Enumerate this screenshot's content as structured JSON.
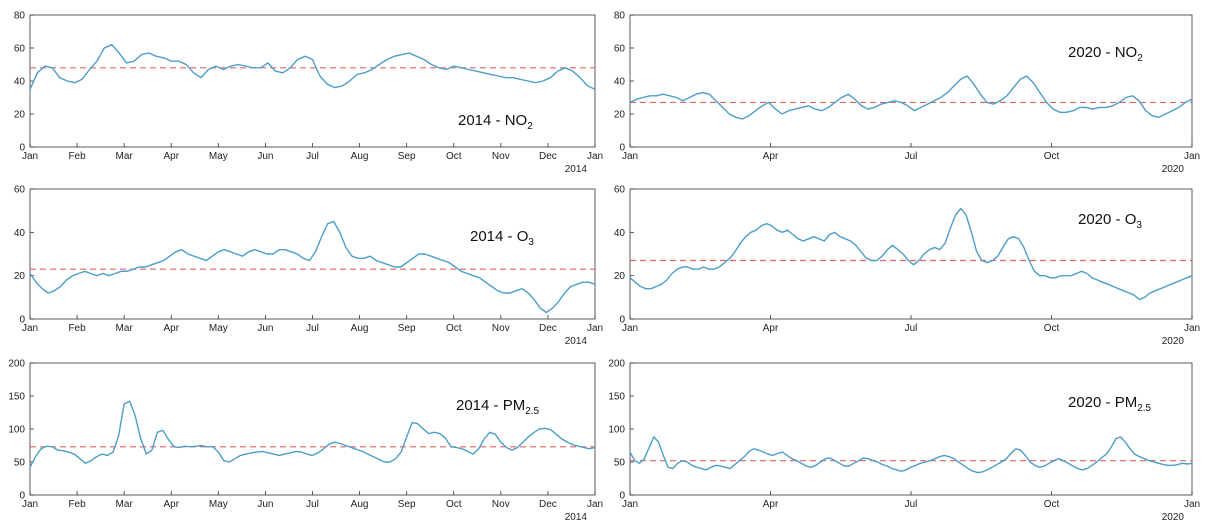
{
  "colors": {
    "series": "#4d9ec9",
    "mean_line": "#e06666",
    "axis": "#333333",
    "background": "#ffffff"
  },
  "chart_data": [
    {
      "type": "line",
      "title_main": "2014 - NO",
      "title_sub": "2",
      "x_tick_labels": [
        "Jan",
        "Feb",
        "Mar",
        "Apr",
        "May",
        "Jun",
        "Jul",
        "Aug",
        "Sep",
        "Oct",
        "Nov",
        "Dec",
        "Jan"
      ],
      "year_label": "2014",
      "ylim": [
        0,
        80
      ],
      "y_ticks": [
        0,
        20,
        40,
        60,
        80
      ],
      "mean": 48,
      "series": [
        {
          "values": [
            35,
            45,
            49,
            48,
            42,
            40,
            39,
            41,
            47,
            52,
            60,
            62,
            57,
            51,
            52,
            56,
            57,
            55,
            54,
            52,
            52,
            50,
            45,
            42,
            47,
            49,
            47,
            49,
            50,
            49,
            48,
            48,
            51,
            46,
            45,
            48,
            53,
            55,
            53,
            43,
            38,
            36,
            37,
            40,
            44,
            45,
            47,
            50,
            53,
            55,
            56,
            57,
            55,
            53,
            50,
            48,
            47,
            49,
            48,
            47,
            46,
            45,
            44,
            43,
            42,
            42,
            41,
            40,
            39,
            40,
            42,
            46,
            48,
            46,
            42,
            37,
            35
          ]
        }
      ]
    },
    {
      "type": "line",
      "title_main": "2020 - NO",
      "title_sub": "2",
      "x_tick_labels": [
        "Jan",
        "Apr",
        "Jul",
        "Oct",
        "Jan"
      ],
      "year_label": "2020",
      "ylim": [
        0,
        80
      ],
      "y_ticks": [
        0,
        20,
        40,
        60,
        80
      ],
      "mean": 27,
      "series": [
        {
          "values": [
            27,
            29,
            30,
            31,
            31,
            32,
            31,
            30,
            28,
            30,
            32,
            33,
            32,
            28,
            24,
            20,
            18,
            17,
            19,
            22,
            25,
            27,
            23,
            20,
            22,
            23,
            24,
            25,
            23,
            22,
            24,
            27,
            30,
            32,
            29,
            25,
            23,
            24,
            26,
            27,
            28,
            27,
            25,
            22,
            24,
            26,
            28,
            30,
            33,
            37,
            41,
            43,
            38,
            32,
            27,
            26,
            28,
            31,
            36,
            41,
            43,
            39,
            33,
            27,
            23,
            21,
            21,
            22,
            24,
            24,
            23,
            24,
            24,
            25,
            27,
            30,
            31,
            28,
            22,
            19,
            18,
            20,
            22,
            24,
            27,
            29
          ]
        }
      ]
    },
    {
      "type": "line",
      "title_main": "2014 - O",
      "title_sub": "3",
      "x_tick_labels": [
        "Jan",
        "Feb",
        "Mar",
        "Apr",
        "May",
        "Jun",
        "Jul",
        "Aug",
        "Sep",
        "Oct",
        "Nov",
        "Dec",
        "Jan"
      ],
      "year_label": "2014",
      "ylim": [
        0,
        60
      ],
      "y_ticks": [
        0,
        20,
        40,
        60
      ],
      "mean": 23,
      "series": [
        {
          "values": [
            21,
            17,
            14,
            12,
            13,
            15,
            18,
            20,
            21,
            22,
            21,
            20,
            21,
            20,
            21,
            22,
            22,
            23,
            24,
            24,
            25,
            26,
            27,
            29,
            31,
            32,
            30,
            29,
            28,
            27,
            29,
            31,
            32,
            31,
            30,
            29,
            31,
            32,
            31,
            30,
            30,
            32,
            32,
            31,
            30,
            28,
            27,
            31,
            38,
            44,
            45,
            40,
            33,
            29,
            28,
            28,
            29,
            27,
            26,
            25,
            24,
            24,
            26,
            28,
            30,
            30,
            29,
            28,
            27,
            26,
            24,
            22,
            21,
            20,
            19,
            17,
            15,
            13,
            12,
            12,
            13,
            14,
            12,
            9,
            5,
            3,
            5,
            8,
            12,
            15,
            16,
            17,
            17,
            16
          ]
        }
      ]
    },
    {
      "type": "line",
      "title_main": "2020 - O",
      "title_sub": "3",
      "x_tick_labels": [
        "Jan",
        "Apr",
        "Jul",
        "Oct",
        "Jan"
      ],
      "year_label": "2020",
      "ylim": [
        0,
        60
      ],
      "y_ticks": [
        0,
        20,
        40,
        60
      ],
      "mean": 27,
      "series": [
        {
          "values": [
            19,
            17,
            15,
            14,
            14,
            15,
            16,
            18,
            21,
            23,
            24,
            24,
            23,
            23,
            24,
            23,
            23,
            24,
            26,
            28,
            31,
            35,
            38,
            40,
            41,
            43,
            44,
            43,
            41,
            40,
            41,
            39,
            37,
            36,
            37,
            38,
            37,
            36,
            39,
            40,
            38,
            37,
            36,
            34,
            31,
            28,
            27,
            27,
            29,
            32,
            34,
            32,
            30,
            27,
            25,
            27,
            30,
            32,
            33,
            32,
            35,
            42,
            48,
            51,
            48,
            40,
            31,
            27,
            26,
            27,
            29,
            33,
            37,
            38,
            37,
            33,
            27,
            22,
            20,
            20,
            19,
            19,
            20,
            20,
            20,
            21,
            22,
            21,
            19,
            18,
            17,
            16,
            15,
            14,
            13,
            12,
            11,
            9,
            10,
            12,
            13,
            14,
            15,
            16,
            17,
            18,
            19,
            20
          ]
        }
      ]
    },
    {
      "type": "line",
      "title_main": "2014 - PM",
      "title_sub": "2.5",
      "x_tick_labels": [
        "Jan",
        "Feb",
        "Mar",
        "Apr",
        "May",
        "Jun",
        "Jul",
        "Aug",
        "Sep",
        "Oct",
        "Nov",
        "Dec",
        "Jan"
      ],
      "year_label": "2014",
      "ylim": [
        0,
        200
      ],
      "y_ticks": [
        0,
        50,
        100,
        150,
        200
      ],
      "mean": 73,
      "series": [
        {
          "values": [
            42,
            58,
            70,
            74,
            73,
            68,
            67,
            65,
            62,
            55,
            48,
            52,
            58,
            62,
            60,
            65,
            90,
            138,
            142,
            120,
            85,
            62,
            68,
            95,
            98,
            84,
            73,
            72,
            74,
            73,
            74,
            75,
            73,
            73,
            65,
            52,
            50,
            55,
            60,
            62,
            64,
            65,
            66,
            64,
            62,
            60,
            62,
            64,
            66,
            65,
            62,
            60,
            64,
            70,
            77,
            80,
            78,
            75,
            72,
            69,
            66,
            62,
            58,
            54,
            50,
            50,
            55,
            65,
            88,
            110,
            108,
            100,
            93,
            95,
            93,
            86,
            73,
            72,
            70,
            66,
            62,
            70,
            85,
            95,
            92,
            80,
            72,
            68,
            72,
            80,
            88,
            95,
            100,
            101,
            99,
            92,
            85,
            80,
            76,
            74,
            72,
            70,
            72
          ]
        }
      ]
    },
    {
      "type": "line",
      "title_main": "2020 - PM",
      "title_sub": "2.5",
      "x_tick_labels": [
        "Jan",
        "Apr",
        "Jul",
        "Oct",
        "Jan"
      ],
      "year_label": "2020",
      "ylim": [
        0,
        200
      ],
      "y_ticks": [
        0,
        50,
        100,
        150,
        200
      ],
      "mean": 52,
      "series": [
        {
          "values": [
            65,
            52,
            48,
            55,
            72,
            88,
            80,
            60,
            42,
            40,
            48,
            52,
            50,
            45,
            42,
            40,
            38,
            42,
            45,
            44,
            42,
            40,
            46,
            52,
            58,
            66,
            70,
            68,
            65,
            62,
            60,
            63,
            65,
            60,
            55,
            52,
            48,
            44,
            42,
            45,
            50,
            55,
            56,
            52,
            48,
            44,
            44,
            48,
            52,
            56,
            55,
            52,
            50,
            46,
            44,
            40,
            38,
            36,
            38,
            42,
            45,
            48,
            50,
            52,
            55,
            58,
            60,
            58,
            55,
            50,
            45,
            40,
            36,
            34,
            35,
            38,
            42,
            46,
            50,
            55,
            63,
            70,
            68,
            60,
            50,
            45,
            42,
            44,
            48,
            52,
            55,
            52,
            48,
            44,
            40,
            38,
            40,
            45,
            50,
            56,
            62,
            72,
            85,
            88,
            80,
            70,
            62,
            58,
            55,
            52,
            50,
            48,
            46,
            45,
            45,
            46,
            48,
            47,
            48
          ]
        }
      ]
    }
  ]
}
